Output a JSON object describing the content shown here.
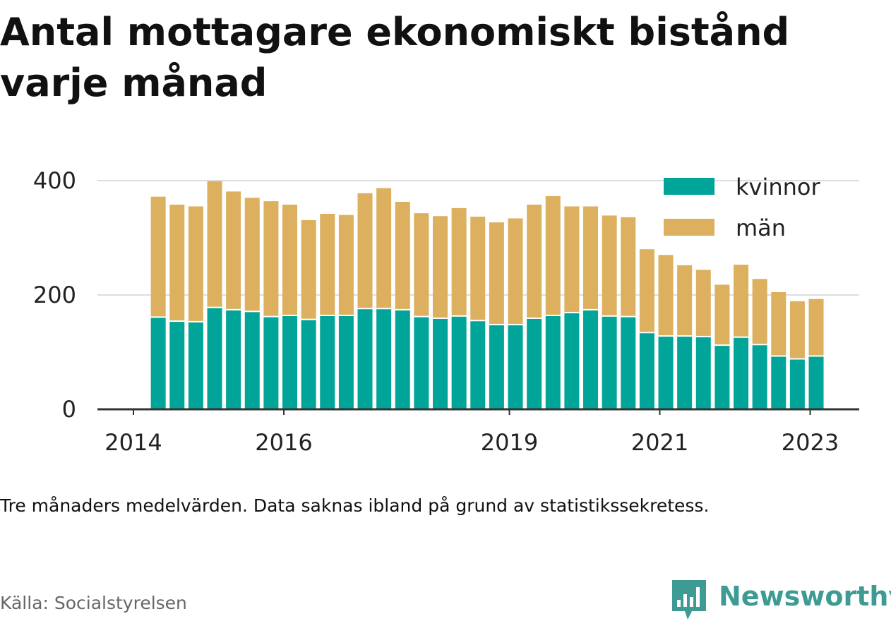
{
  "title": "Antal mottagare ekonomiskt bistånd varje månad",
  "note": "Tre månaders medelvärden. Data saknas ibland på grund av statistikssekretess.",
  "source": "Källa: Socialstyrelsen",
  "brand": {
    "name": "Newsworthy",
    "color": "#3d9b93",
    "icon": "bar-chart-speech-bubble-icon"
  },
  "colors": {
    "kvinnor": "#00a499",
    "man": "#dcb05e",
    "grid": "#dddddd",
    "axis": "#333333",
    "text": "#222222"
  },
  "chart_data": {
    "type": "bar",
    "stacked": true,
    "title": "Antal mottagare ekonomiskt bistånd varje månad",
    "xlabel": "",
    "ylabel": "",
    "ylim": [
      0,
      400
    ],
    "yticks": [
      0,
      200,
      400
    ],
    "grid": true,
    "legend_position": "top-right",
    "xlim": [
      2014.0,
      2023.5
    ],
    "xticks": [
      2014,
      2016,
      2019,
      2021,
      2023
    ],
    "x": [
      2014.33,
      2014.58,
      2014.83,
      2015.08,
      2015.33,
      2015.58,
      2015.83,
      2016.08,
      2016.33,
      2016.58,
      2016.83,
      2017.08,
      2017.33,
      2017.58,
      2017.83,
      2018.08,
      2018.33,
      2018.58,
      2018.83,
      2019.08,
      2019.33,
      2019.58,
      2019.83,
      2020.08,
      2020.33,
      2020.58,
      2020.83,
      2021.08,
      2021.33,
      2021.58,
      2021.83,
      2022.08,
      2022.33,
      2022.58,
      2022.83,
      2023.08
    ],
    "series": [
      {
        "name": "kvinnor",
        "values": [
          160,
          153,
          152,
          177,
          173,
          170,
          161,
          163,
          156,
          163,
          163,
          175,
          175,
          173,
          161,
          158,
          162,
          154,
          147,
          147,
          158,
          163,
          168,
          173,
          162,
          161,
          133,
          127,
          127,
          126,
          111,
          125,
          112,
          92,
          87,
          92
        ]
      },
      {
        "name": "män",
        "values": [
          212,
          205,
          203,
          222,
          208,
          200,
          203,
          195,
          175,
          179,
          177,
          203,
          212,
          190,
          182,
          180,
          190,
          183,
          180,
          187,
          200,
          210,
          187,
          182,
          177,
          175,
          147,
          143,
          125,
          118,
          107,
          128,
          116,
          113,
          102,
          101
        ]
      }
    ]
  }
}
